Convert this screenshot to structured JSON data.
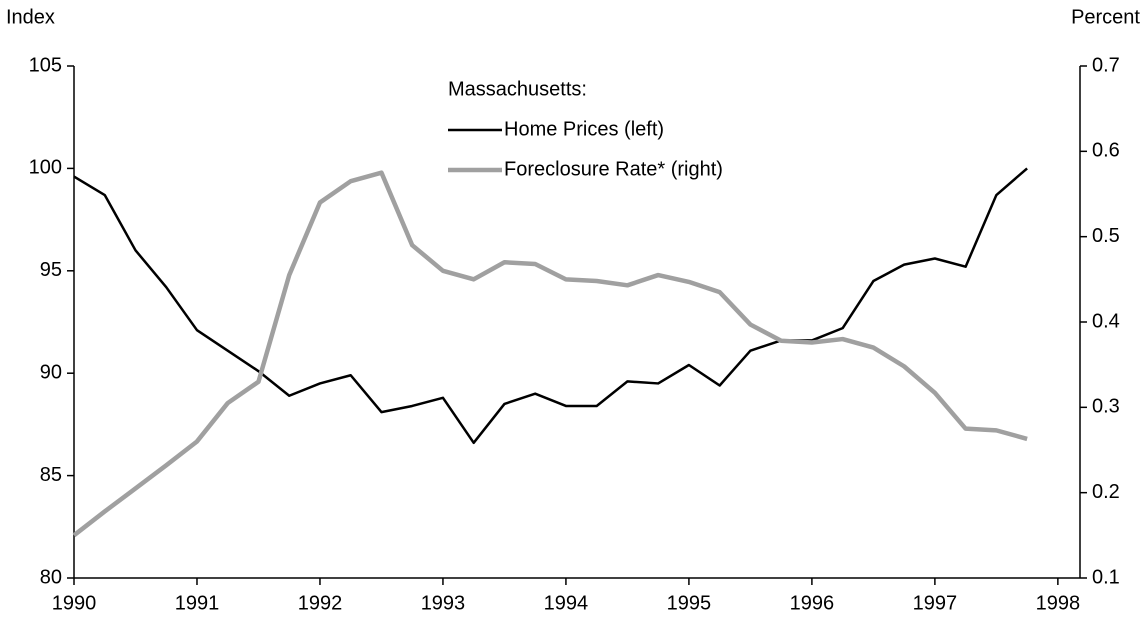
{
  "chart_data": {
    "type": "line",
    "y_label": "Index",
    "y2_label": "Percent",
    "legend_title": "Massachusetts:",
    "x": [
      1990,
      1990.25,
      1990.5,
      1990.75,
      1991,
      1991.25,
      1991.5,
      1991.75,
      1992,
      1992.25,
      1992.5,
      1992.75,
      1993,
      1993.25,
      1993.5,
      1993.75,
      1994,
      1994.25,
      1994.5,
      1994.75,
      1995,
      1995.25,
      1995.5,
      1995.75,
      1996,
      1996.25,
      1996.5,
      1996.75,
      1997,
      1997.25,
      1997.5,
      1997.75
    ],
    "series": [
      {
        "name": "Home Prices (left)",
        "color": "#000000",
        "values": [
          99.6,
          98.7,
          96.0,
          94.2,
          92.1,
          91.1,
          90.1,
          88.9,
          89.5,
          89.9,
          88.1,
          88.4,
          88.8,
          86.6,
          88.5,
          89.0,
          88.4,
          88.4,
          89.6,
          89.5,
          90.4,
          89.4,
          91.1,
          91.6,
          91.6,
          92.2,
          94.5,
          95.3,
          95.6,
          95.2,
          98.7,
          100.0
        ]
      },
      {
        "name": "Foreclosure Rate* (right)",
        "color": "#a0a0a0",
        "axis": "y2",
        "values": [
          0.15,
          0.178,
          0.205,
          0.232,
          0.26,
          0.305,
          0.33,
          0.455,
          0.54,
          0.565,
          0.575,
          0.49,
          0.46,
          0.45,
          0.47,
          0.468,
          0.45,
          0.448,
          0.443,
          0.455,
          0.447,
          0.435,
          0.397,
          0.378,
          0.376,
          0.38,
          0.37,
          0.348,
          0.317,
          0.275,
          0.273,
          0.263
        ]
      }
    ],
    "xlim": [
      1990,
      1998.18
    ],
    "xticks": [
      1990,
      1991,
      1992,
      1993,
      1994,
      1995,
      1996,
      1997,
      1998
    ],
    "ylim": [
      80,
      105
    ],
    "yticks": [
      80,
      85,
      90,
      95,
      100,
      105
    ],
    "y2lim": [
      0.1,
      0.7
    ],
    "y2ticks": [
      0.1,
      0.2,
      0.3,
      0.4,
      0.5,
      0.6,
      0.7
    ],
    "grid": false
  }
}
